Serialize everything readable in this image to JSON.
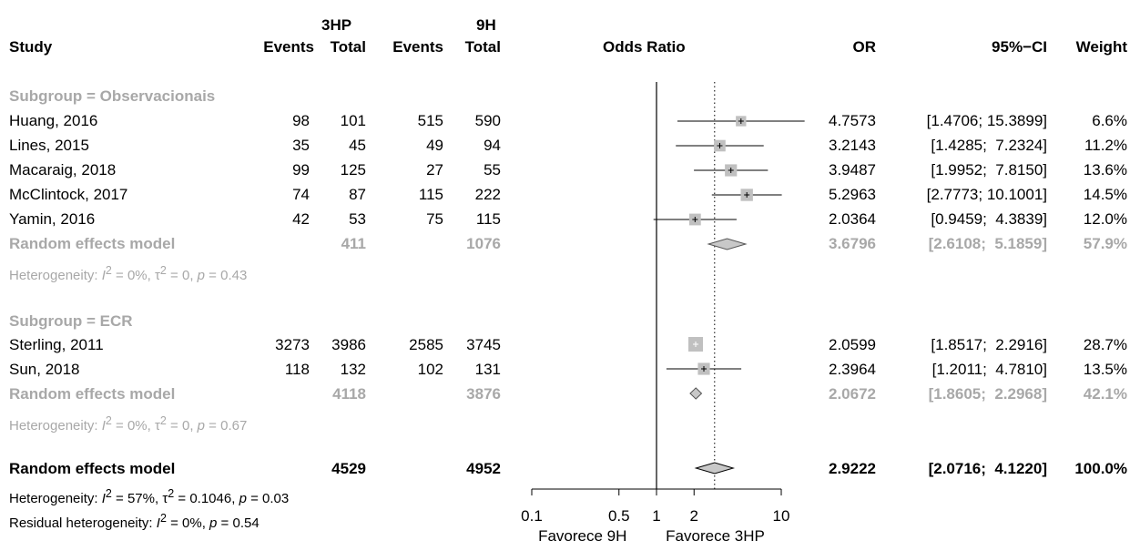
{
  "header": {
    "group1": "3HP",
    "group2": "9H",
    "study": "Study",
    "events": "Events",
    "total": "Total",
    "odds_ratio": "Odds Ratio",
    "or": "OR",
    "ci": "95%−CI",
    "weight": "Weight"
  },
  "subgroups": [
    {
      "title": "Subgroup = Observacionais",
      "studies": [
        {
          "name": "Huang, 2016",
          "e1": "98",
          "t1": "101",
          "e2": "515",
          "t2": "590",
          "or": "4.7573",
          "ci": "[1.4706; 15.3899]",
          "weight": "6.6%"
        },
        {
          "name": "Lines, 2015",
          "e1": "35",
          "t1": "45",
          "e2": "49",
          "t2": "94",
          "or": "3.2143",
          "ci": "[1.4285;  7.2324]",
          "weight": "11.2%"
        },
        {
          "name": "Macaraig, 2018",
          "e1": "99",
          "t1": "125",
          "e2": "27",
          "t2": "55",
          "or": "3.9487",
          "ci": "[1.9952;  7.8150]",
          "weight": "13.6%"
        },
        {
          "name": "McClintock, 2017",
          "e1": "74",
          "t1": "87",
          "e2": "115",
          "t2": "222",
          "or": "5.2963",
          "ci": "[2.7773; 10.1001]",
          "weight": "14.5%"
        },
        {
          "name": "Yamin, 2016",
          "e1": "42",
          "t1": "53",
          "e2": "75",
          "t2": "115",
          "or": "2.0364",
          "ci": "[0.9459;  4.3839]",
          "weight": "12.0%"
        }
      ],
      "model": {
        "label": "Random effects model",
        "t1": "411",
        "t2": "1076",
        "or": "3.6796",
        "ci": "[2.6108;  5.1859]",
        "weight": "57.9%"
      },
      "heterogeneity": {
        "prefix": "Heterogeneity: ",
        "i2": "0%",
        "tau2": "0",
        "p": "0.43"
      }
    },
    {
      "title": "Subgroup = ECR",
      "studies": [
        {
          "name": "Sterling, 2011",
          "e1": "3273",
          "t1": "3986",
          "e2": "2585",
          "t2": "3745",
          "or": "2.0599",
          "ci": "[1.8517;  2.2916]",
          "weight": "28.7%"
        },
        {
          "name": "Sun, 2018",
          "e1": "118",
          "t1": "132",
          "e2": "102",
          "t2": "131",
          "or": "2.3964",
          "ci": "[1.2011;  4.7810]",
          "weight": "13.5%"
        }
      ],
      "model": {
        "label": "Random effects model",
        "t1": "4118",
        "t2": "3876",
        "or": "2.0672",
        "ci": "[1.8605;  2.2968]",
        "weight": "42.1%"
      },
      "heterogeneity": {
        "prefix": "Heterogeneity: ",
        "i2": "0%",
        "tau2": "0",
        "p": "0.67"
      }
    }
  ],
  "overall": {
    "label": "Random effects model",
    "t1": "4529",
    "t2": "4952",
    "or": "2.9222",
    "ci": "[2.0716;  4.1220]",
    "weight": "100.0%",
    "heterogeneity": {
      "prefix": "Heterogeneity: ",
      "i2": "57%",
      "tau2": "0.1046",
      "p": "0.03"
    },
    "residual": {
      "prefix": "Residual heterogeneity: ",
      "i2": "0%",
      "p": "0.54"
    }
  },
  "axis": {
    "ticks": [
      "0.1",
      "0.5",
      "1",
      "2",
      "10"
    ],
    "favors_left": "Favorece 9H",
    "favors_right": "Favorece 3HP"
  },
  "colors": {
    "text": "#000000",
    "subgroup_gray": "#a8a8a8",
    "box_fill": "#c0c0c0",
    "diamond_fill": "#c8c8c8"
  },
  "chart_data": {
    "type": "forest",
    "xscale": "log",
    "xlim": [
      0.1,
      10
    ],
    "reference_line": 1,
    "overall_line": 2.9222,
    "studies": [
      {
        "name": "Huang, 2016",
        "or": 4.7573,
        "lower": 1.4706,
        "upper": 15.3899,
        "weight": 6.6
      },
      {
        "name": "Lines, 2015",
        "or": 3.2143,
        "lower": 1.4285,
        "upper": 7.2324,
        "weight": 11.2
      },
      {
        "name": "Macaraig, 2018",
        "or": 3.9487,
        "lower": 1.9952,
        "upper": 7.815,
        "weight": 13.6
      },
      {
        "name": "McClintock, 2017",
        "or": 5.2963,
        "lower": 2.7773,
        "upper": 10.1001,
        "weight": 14.5
      },
      {
        "name": "Yamin, 2016",
        "or": 2.0364,
        "lower": 0.9459,
        "upper": 4.3839,
        "weight": 12.0
      },
      {
        "name": "Sterling, 2011",
        "or": 2.0599,
        "lower": 1.8517,
        "upper": 2.2916,
        "weight": 28.7
      },
      {
        "name": "Sun, 2018",
        "or": 2.3964,
        "lower": 1.2011,
        "upper": 4.781,
        "weight": 13.5
      }
    ],
    "pooled": [
      {
        "name": "Random effects model (Observacionais)",
        "or": 3.6796,
        "lower": 2.6108,
        "upper": 5.1859
      },
      {
        "name": "Random effects model (ECR)",
        "or": 2.0672,
        "lower": 1.8605,
        "upper": 2.2968
      },
      {
        "name": "Random effects model (overall)",
        "or": 2.9222,
        "lower": 2.0716,
        "upper": 4.122
      }
    ]
  }
}
